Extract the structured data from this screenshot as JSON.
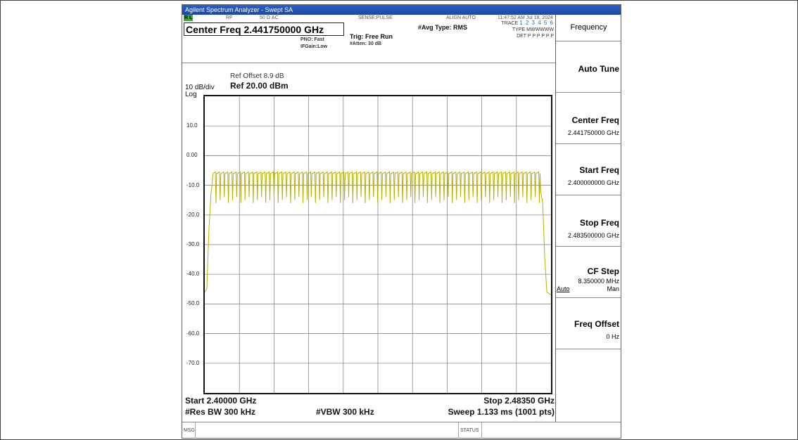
{
  "window_title": "Agilent Spectrum Analyzer - Swept SA",
  "status": {
    "rl": "R L",
    "rf": "RF",
    "impedance": "50 Ω  AC",
    "sense": "SENSE:PULSE",
    "align": "ALIGN AUTO",
    "datetime": "11:47:52 AM Jul 18, 2024"
  },
  "center_freq_label": "Center Freq 2.441750000 GHz",
  "pno": "PNO: Fast",
  "ifgain": "IFGain:Low",
  "trig": "Trig: Free Run",
  "atten": "#Atten: 30 dB",
  "avg_type": "#Avg Type: RMS",
  "trace": {
    "trace_label": "TRACE",
    "trace_digits": "1 2 3 4 5 6",
    "type_label": "TYPE",
    "type_value": "MWWWWW",
    "det_label": "DET",
    "det_value": "P P P P P P"
  },
  "scale": {
    "ref_offset": "Ref Offset 8.9 dB",
    "ref_level": "Ref 20.00 dBm",
    "div": "10 dB/div",
    "log": "Log"
  },
  "y_ticks": [
    "10.0",
    "0.00",
    "-10.0",
    "-20.0",
    "-30.0",
    "-40.0",
    "-50.0",
    "-60.0",
    "-70.0"
  ],
  "bottom": {
    "start": "Start 2.40000 GHz",
    "stop": "Stop 2.48350 GHz",
    "res_bw": "#Res BW 300 kHz",
    "vbw": "#VBW 300 kHz",
    "sweep": "Sweep  1.133 ms (1001 pts)"
  },
  "softkeys": {
    "menu_title": "Frequency",
    "auto_tune": "Auto Tune",
    "center_freq": {
      "label": "Center Freq",
      "value": "2.441750000 GHz"
    },
    "start_freq": {
      "label": "Start Freq",
      "value": "2.400000000 GHz"
    },
    "stop_freq": {
      "label": "Stop Freq",
      "value": "2.483500000 GHz"
    },
    "cf_step": {
      "label": "CF Step",
      "value": "8.350000 MHz",
      "auto": "Auto",
      "man": "Man"
    },
    "freq_offset": {
      "label": "Freq Offset",
      "value": "0 Hz"
    }
  },
  "footer": {
    "msg": "MSG",
    "status": "STATUS"
  },
  "trace_color": "#b8b000",
  "chart_data": {
    "type": "line",
    "title": "",
    "xlabel": "",
    "ylabel": "",
    "xlim": [
      2.4,
      2.4835
    ],
    "ylim": [
      -80,
      20
    ],
    "x_unit": "GHz",
    "y_unit": "dBm",
    "grid": true,
    "series": [
      {
        "values_description_note": "",
        "points": [
          [
            2.4,
            -46
          ],
          [
            2.4005,
            -45
          ],
          [
            2.401,
            -25
          ],
          [
            2.4015,
            -13
          ],
          [
            2.402,
            -12
          ],
          [
            2.481,
            -12
          ],
          [
            2.4815,
            -16
          ],
          [
            2.482,
            -35
          ],
          [
            2.4825,
            -46
          ],
          [
            2.4835,
            -47
          ]
        ],
        "comb": {
          "top": -6,
          "bottom": -16,
          "channels": 79,
          "from": 2.402,
          "to": 2.481
        }
      }
    ]
  }
}
